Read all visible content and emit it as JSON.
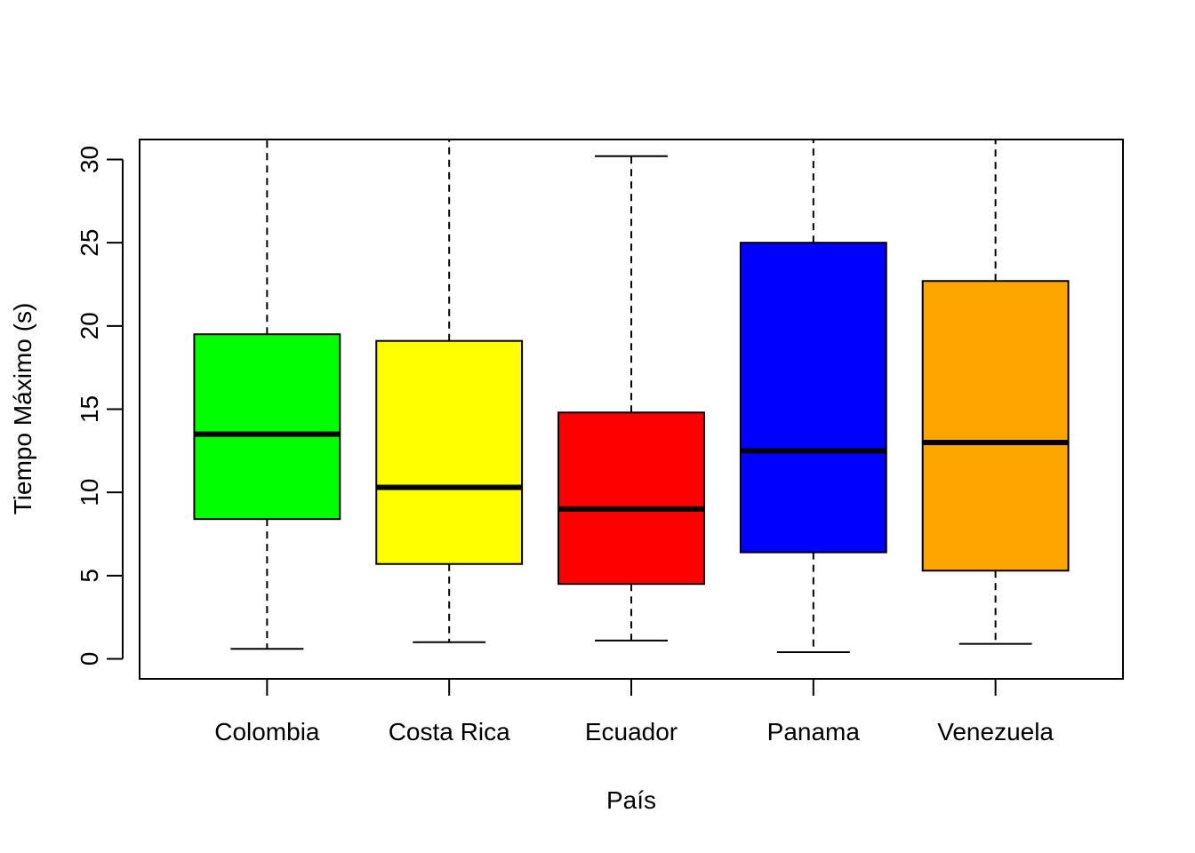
{
  "chart_data": {
    "type": "boxplot",
    "title": "",
    "xlabel": "País",
    "ylabel": "Tiempo Máximo (s)",
    "ylim": [
      -1.2,
      31.2
    ],
    "yticks": [
      "0",
      "5",
      "10",
      "15",
      "20",
      "25",
      "30"
    ],
    "grid": false,
    "legend": "none",
    "categories": [
      "Colombia",
      "Costa Rica",
      "Ecuador",
      "Panama",
      "Venezuela"
    ],
    "series": [
      {
        "category": "Colombia",
        "color": "#00ff00",
        "whisker_low": 0.6,
        "q1": 8.4,
        "median": 13.5,
        "q3": 19.5,
        "whisker_high": 31.2
      },
      {
        "category": "Costa Rica",
        "color": "#ffff00",
        "whisker_low": 1.0,
        "q1": 5.7,
        "median": 10.3,
        "q3": 19.1,
        "whisker_high": 31.2
      },
      {
        "category": "Ecuador",
        "color": "#ff0000",
        "whisker_low": 1.1,
        "q1": 4.5,
        "median": 9.0,
        "q3": 14.8,
        "whisker_high": 30.2
      },
      {
        "category": "Panama",
        "color": "#0000ff",
        "whisker_low": 0.4,
        "q1": 6.4,
        "median": 12.5,
        "q3": 25.0,
        "whisker_high": 31.2
      },
      {
        "category": "Venezuela",
        "color": "#ffa500",
        "whisker_low": 0.9,
        "q1": 5.3,
        "median": 13.0,
        "q3": 22.7,
        "whisker_high": 31.2
      }
    ]
  }
}
